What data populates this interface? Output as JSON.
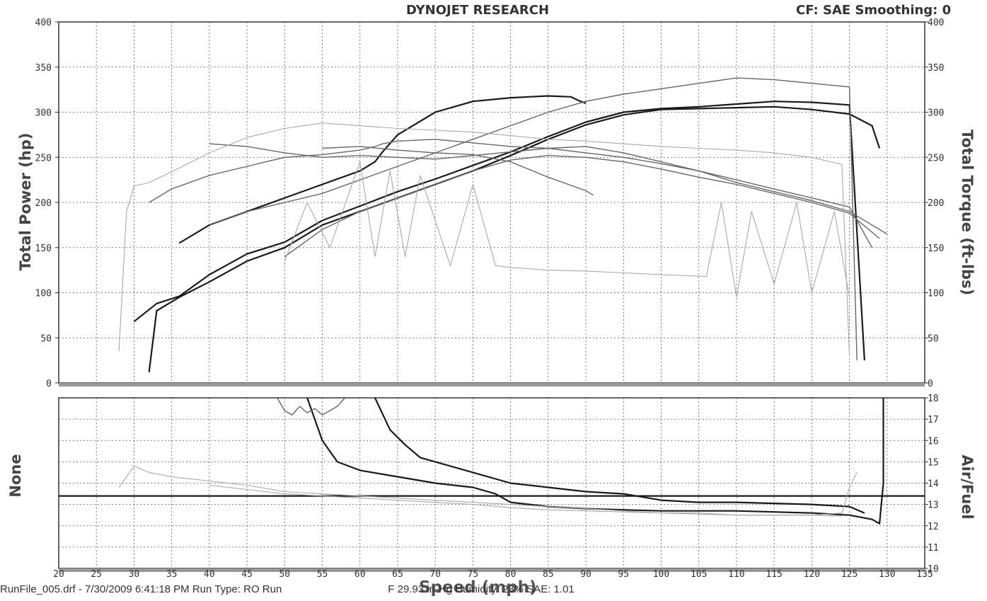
{
  "header": {
    "title": "DYNOJET RESEARCH",
    "right": "CF: SAE  Smoothing: 0"
  },
  "footer": {
    "text": "RunFile_005.drf - 7/30/2009 6:41:18 PM  Run Type: RO  Run",
    "text_tail": "F  29.93 in-Hg  Humidity: 23%  SAE: 1.01"
  },
  "colors": {
    "frame": "#333333",
    "grid": "#555555",
    "dark": "#1a1a1a",
    "mid": "#666666",
    "light": "#a8a8a8"
  },
  "chart_data": [
    {
      "type": "line",
      "title": "DYNOJET RESEARCH",
      "xlabel": "Speed (mph)",
      "ylabel": "Total Power (hp)",
      "y2label": "Total Torque (ft-lbs)",
      "xlim": [
        20,
        135
      ],
      "ylim": [
        0,
        400
      ],
      "y2lim": [
        0,
        400
      ],
      "xticks": [
        20,
        25,
        30,
        35,
        40,
        45,
        50,
        55,
        60,
        65,
        70,
        75,
        80,
        85,
        90,
        95,
        100,
        105,
        110,
        115,
        120,
        125,
        130,
        135
      ],
      "yticks": [
        0,
        50,
        100,
        150,
        200,
        250,
        300,
        350,
        400
      ],
      "y2ticks": [
        0,
        50,
        100,
        150,
        200,
        250,
        300,
        350,
        400
      ],
      "grid": true,
      "series": [
        {
          "style": "dark",
          "x": [
            32,
            33,
            36,
            40,
            45,
            50,
            55,
            60,
            65,
            70,
            75,
            80,
            85,
            90,
            95,
            100,
            105,
            110,
            115,
            120,
            125,
            128,
            129
          ],
          "y": [
            12,
            80,
            95,
            112,
            135,
            150,
            175,
            190,
            205,
            220,
            235,
            252,
            270,
            286,
            297,
            303,
            304,
            305,
            306,
            303,
            298,
            285,
            260
          ]
        },
        {
          "style": "dark",
          "x": [
            30,
            33,
            36,
            40,
            45,
            50,
            55,
            60,
            65,
            70,
            75,
            80,
            85,
            90,
            95,
            100,
            105,
            110,
            115,
            120,
            125,
            127
          ],
          "y": [
            68,
            88,
            96,
            120,
            143,
            156,
            180,
            196,
            212,
            226,
            241,
            256,
            273,
            289,
            300,
            304,
            306,
            309,
            312,
            311,
            308,
            25
          ]
        },
        {
          "style": "dark",
          "x": [
            36,
            40,
            45,
            50,
            55,
            60,
            62,
            63,
            65,
            70,
            75,
            80,
            85,
            88,
            89,
            90
          ],
          "y": [
            155,
            175,
            190,
            205,
            220,
            235,
            245,
            256,
            275,
            300,
            312,
            316,
            318,
            317,
            313,
            310
          ]
        },
        {
          "style": "mid",
          "x": [
            40,
            45,
            50,
            55,
            60,
            65,
            70,
            75,
            80,
            85,
            90,
            95,
            100,
            105,
            110,
            115,
            120,
            125,
            126
          ],
          "y": [
            175,
            190,
            200,
            210,
            225,
            240,
            255,
            270,
            285,
            300,
            312,
            320,
            326,
            332,
            338,
            336,
            332,
            328,
            25
          ]
        },
        {
          "style": "mid",
          "x": [
            32,
            35,
            40,
            45,
            50,
            55,
            60,
            62,
            63,
            65,
            70,
            75,
            80,
            85,
            90,
            95,
            100,
            105,
            110,
            115,
            120,
            125,
            128
          ],
          "y": [
            200,
            215,
            230,
            240,
            250,
            253,
            258,
            262,
            265,
            268,
            270,
            266,
            262,
            260,
            255,
            250,
            243,
            235,
            225,
            215,
            205,
            195,
            150
          ]
        },
        {
          "style": "mid",
          "x": [
            40,
            45,
            50,
            55,
            60,
            65,
            70,
            75,
            80,
            85,
            90,
            95,
            100,
            105,
            110,
            115,
            120,
            125,
            130
          ],
          "y": [
            265,
            262,
            255,
            250,
            252,
            250,
            248,
            252,
            256,
            260,
            262,
            255,
            245,
            235,
            222,
            212,
            202,
            190,
            165
          ]
        },
        {
          "style": "mid",
          "x": [
            50,
            55,
            60,
            65,
            70,
            75,
            80,
            85,
            90,
            95,
            100,
            105,
            110,
            115,
            120,
            125,
            129
          ],
          "y": [
            140,
            170,
            190,
            205,
            220,
            235,
            247,
            252,
            250,
            245,
            237,
            228,
            220,
            210,
            200,
            188,
            160
          ]
        },
        {
          "style": "mid",
          "x": [
            55,
            60,
            65,
            70,
            75,
            80,
            85,
            90,
            91
          ],
          "y": [
            260,
            262,
            258,
            255,
            253,
            245,
            228,
            213,
            208
          ]
        },
        {
          "style": "light",
          "x": [
            28,
            29,
            30,
            32,
            35,
            40,
            45,
            50,
            55,
            60,
            65,
            70,
            75,
            80,
            85,
            90,
            95,
            100,
            105,
            110,
            115,
            120,
            124,
            125
          ],
          "y": [
            35,
            190,
            218,
            222,
            234,
            255,
            272,
            282,
            288,
            285,
            282,
            280,
            278,
            274,
            270,
            268,
            265,
            262,
            260,
            258,
            255,
            250,
            242,
            30
          ]
        },
        {
          "style": "light",
          "x": [
            50,
            53,
            56,
            60,
            62,
            64,
            66,
            68,
            72,
            75,
            78,
            80,
            85,
            90,
            100,
            106,
            108,
            110,
            112,
            115,
            118,
            120,
            123,
            125
          ],
          "y": [
            135,
            200,
            150,
            245,
            140,
            235,
            140,
            230,
            130,
            220,
            130,
            128,
            125,
            124,
            120,
            118,
            200,
            95,
            190,
            110,
            200,
            100,
            190,
            95
          ]
        }
      ]
    },
    {
      "type": "line",
      "xlabel": "Speed (mph)",
      "ylabel": "None",
      "y2label": "Air/Fuel",
      "xlim": [
        20,
        135
      ],
      "y2lim": [
        10,
        18
      ],
      "y2ticks": [
        10,
        11,
        12,
        13,
        14,
        15,
        16,
        17,
        18
      ],
      "grid": true,
      "series": [
        {
          "style": "dark",
          "x": [
            20,
            135
          ],
          "y": [
            13.4,
            13.4
          ]
        },
        {
          "style": "dark",
          "x": [
            53,
            55,
            57,
            60,
            65,
            70,
            75,
            78,
            80,
            85,
            90,
            95,
            100,
            105,
            110,
            115,
            120,
            125,
            128,
            129,
            129.5,
            129.5
          ],
          "y": [
            18,
            16,
            15,
            14.6,
            14.3,
            14.0,
            13.8,
            13.5,
            13.1,
            12.9,
            12.8,
            12.75,
            12.7,
            12.7,
            12.7,
            12.65,
            12.6,
            12.5,
            12.3,
            12.1,
            14,
            18
          ]
        },
        {
          "style": "dark",
          "x": [
            62,
            64,
            66,
            68,
            70,
            75,
            80,
            85,
            90,
            95,
            100,
            105,
            110,
            115,
            120,
            125,
            127
          ],
          "y": [
            18,
            16.5,
            15.8,
            15.2,
            15.0,
            14.5,
            14.0,
            13.8,
            13.6,
            13.5,
            13.2,
            13.1,
            13.1,
            13.05,
            13.0,
            12.9,
            12.6
          ]
        },
        {
          "style": "mid",
          "x": [
            49,
            50,
            51,
            52,
            53,
            54,
            55,
            56,
            57,
            58
          ],
          "y": [
            18,
            17.4,
            17.2,
            17.6,
            17.3,
            17.5,
            17.2,
            17.4,
            17.6,
            18
          ]
        },
        {
          "style": "light",
          "x": [
            28,
            30,
            32,
            35,
            40,
            45,
            50,
            55,
            60,
            65,
            70,
            75,
            80,
            85,
            90,
            95,
            100,
            105,
            110,
            115,
            120,
            124,
            125,
            126
          ],
          "y": [
            13.8,
            14.8,
            14.5,
            14.3,
            14.1,
            13.9,
            13.6,
            13.5,
            13.4,
            13.3,
            13.2,
            13.1,
            13.0,
            12.9,
            12.8,
            12.7,
            12.6,
            12.6,
            12.5,
            12.5,
            12.5,
            12.6,
            13.8,
            14.5
          ]
        },
        {
          "style": "light",
          "x": [
            40,
            45,
            50,
            55,
            60,
            65,
            70,
            75,
            80,
            85,
            90,
            95,
            100,
            105,
            110,
            115,
            120,
            124
          ],
          "y": [
            13.9,
            13.7,
            13.5,
            13.4,
            13.3,
            13.2,
            13.1,
            13.0,
            12.85,
            12.75,
            12.7,
            12.65,
            12.6,
            12.55,
            12.5,
            12.5,
            12.5,
            12.45
          ]
        }
      ]
    }
  ]
}
